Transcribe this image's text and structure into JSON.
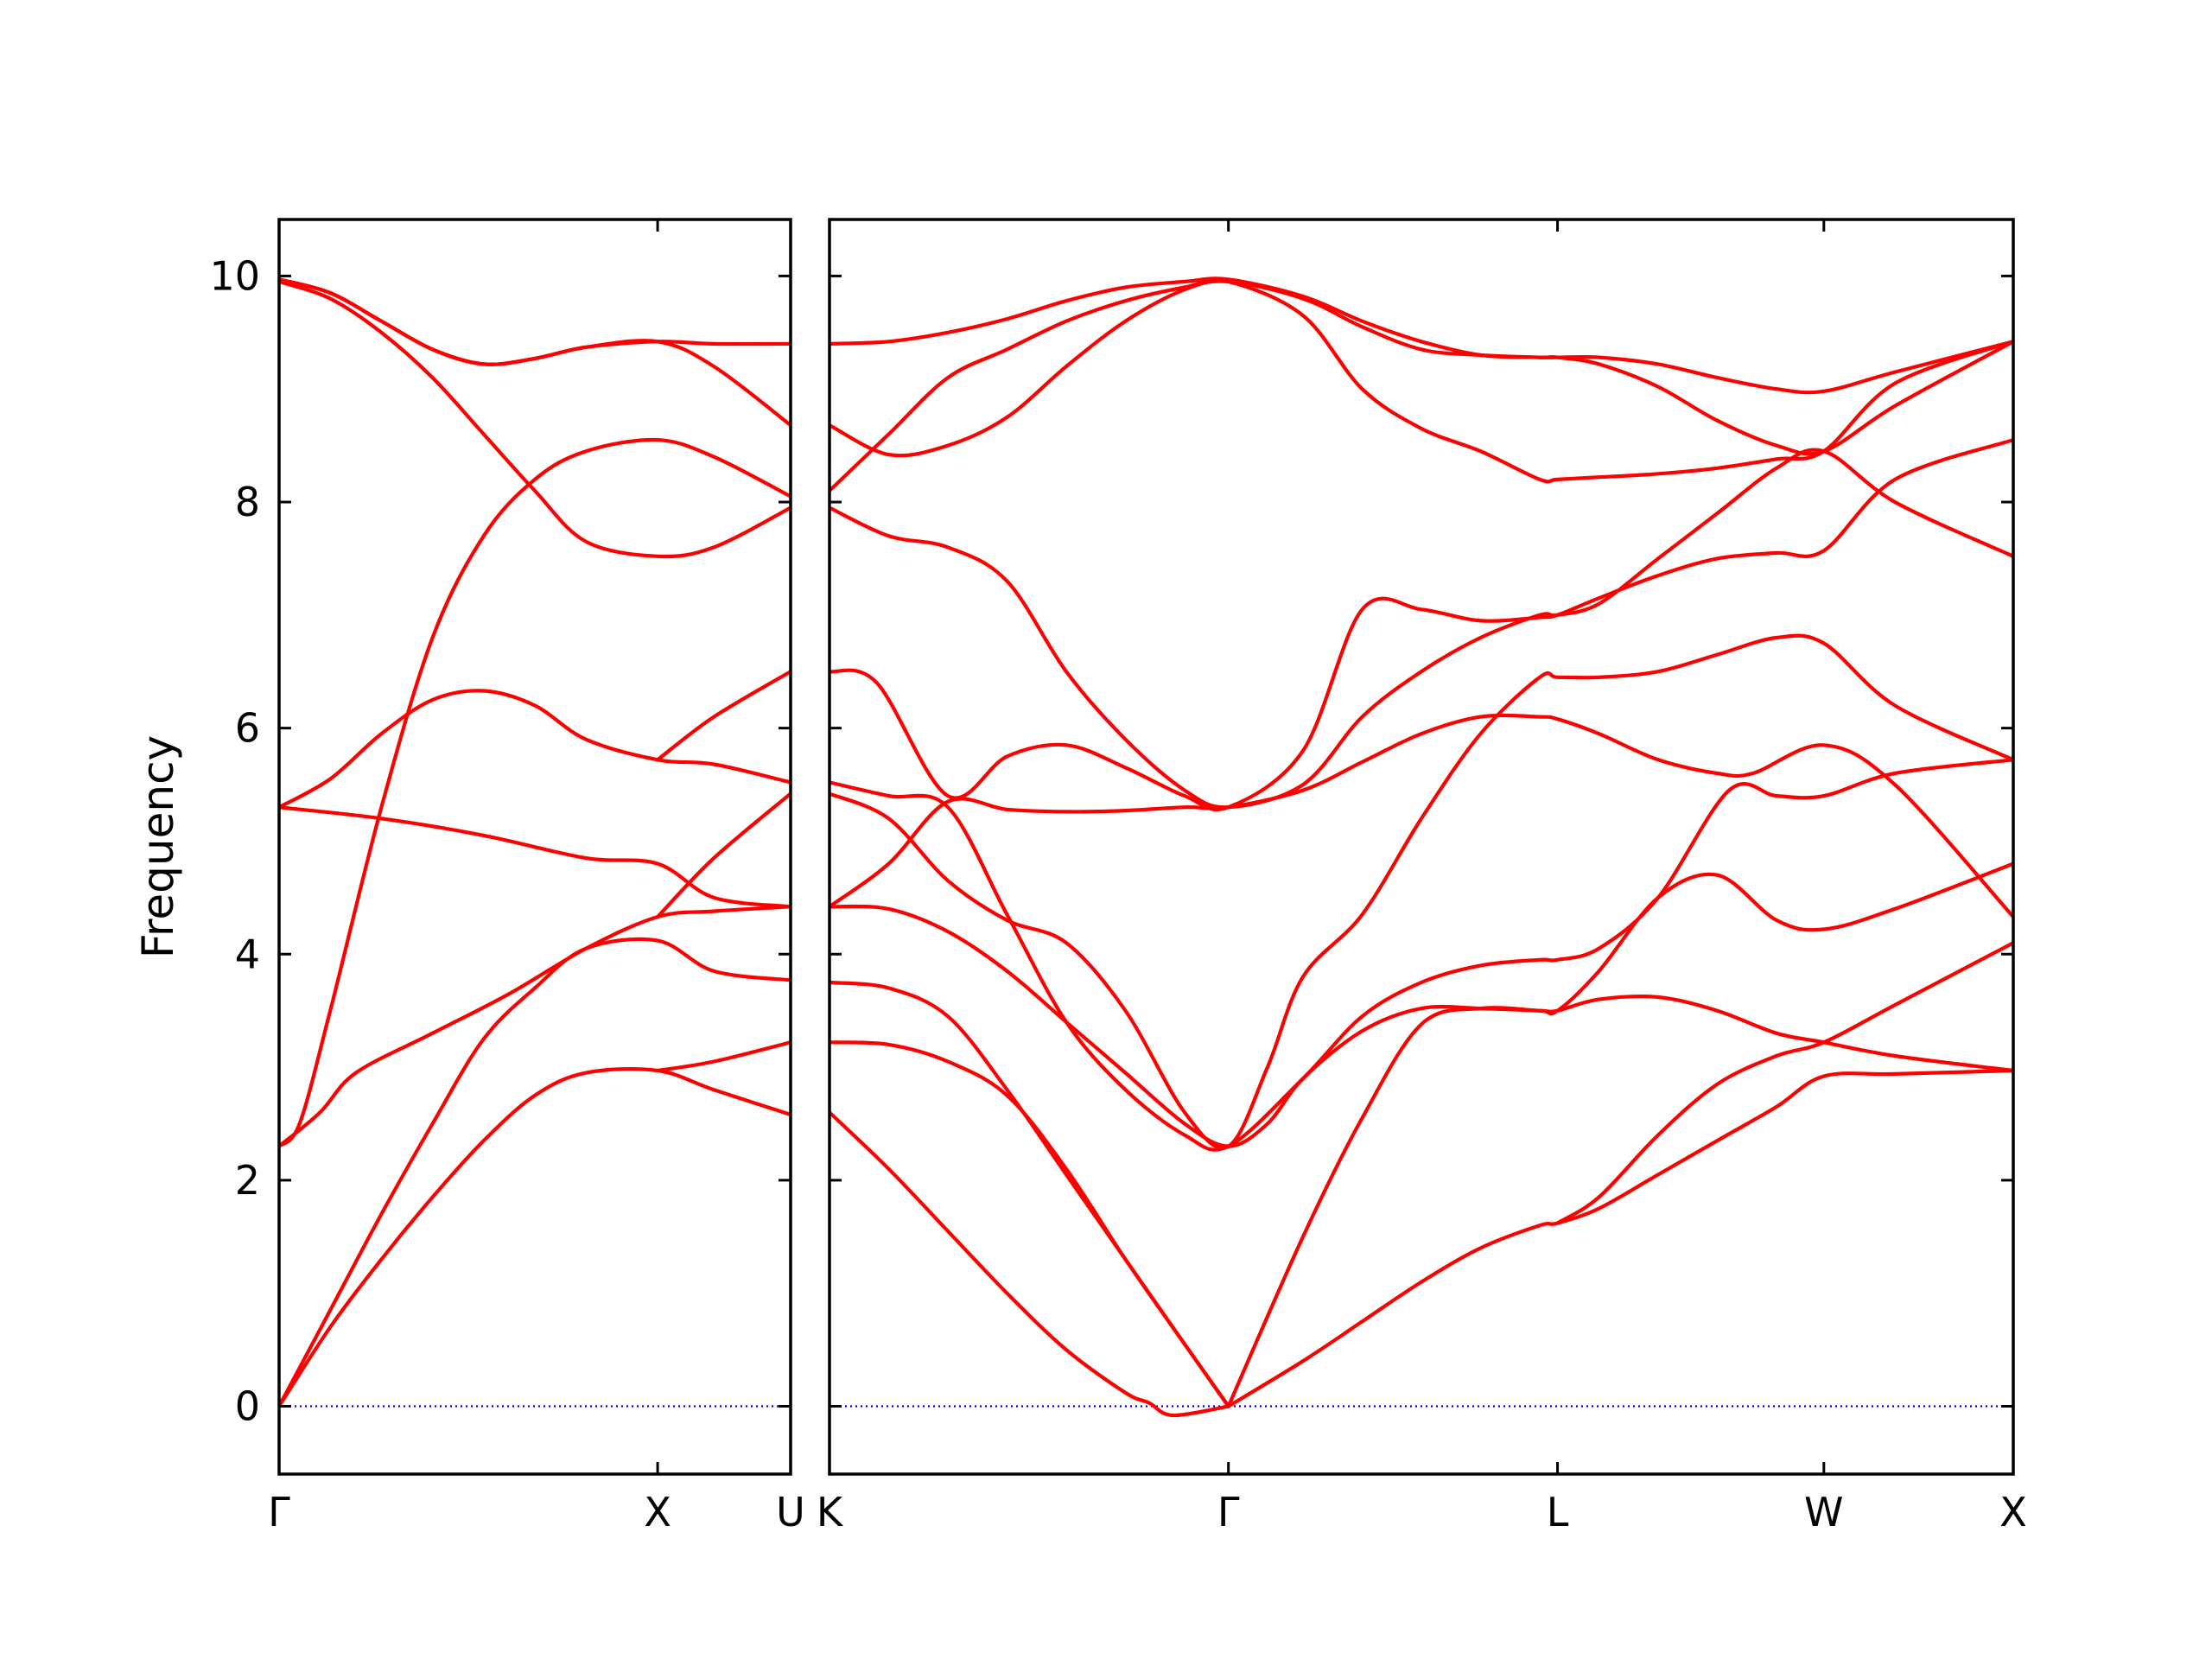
{
  "chart_data": {
    "type": "line",
    "ylabel": "Frequency",
    "ylim": [
      -0.6,
      10.5
    ],
    "yticks": [
      0,
      2,
      4,
      6,
      8,
      10
    ],
    "line_color": "#ff0000",
    "zero_line_color": "#0000cc",
    "panels": [
      {
        "name": "left",
        "xticks": [
          {
            "label": "Γ",
            "pos": 0
          },
          {
            "label": "X",
            "pos": 0.74
          },
          {
            "label": "U",
            "pos": 1.0
          }
        ],
        "series": [
          {
            "x": [
              0,
              0.1,
              0.2,
              0.3,
              0.4,
              0.5,
              0.6,
              0.74,
              0.85,
              1.0
            ],
            "y": [
              0,
              0.7,
              1.3,
              1.85,
              2.35,
              2.75,
              2.95,
              2.97,
              2.8,
              2.58
            ]
          },
          {
            "x": [
              0,
              0.1,
              0.2,
              0.3,
              0.4,
              0.5,
              0.6,
              0.74,
              0.85,
              1.0
            ],
            "y": [
              0,
              0.85,
              1.7,
              2.5,
              3.25,
              3.7,
              4.05,
              4.12,
              3.85,
              3.77
            ]
          },
          {
            "x": [
              0,
              0.08,
              0.15,
              0.3,
              0.45,
              0.6,
              0.74,
              0.85,
              1.0
            ],
            "y": [
              2.3,
              2.6,
              2.95,
              3.3,
              3.65,
              4.05,
              4.33,
              4.38,
              4.42
            ]
          },
          {
            "x": [
              0,
              0.2,
              0.4,
              0.6,
              0.74,
              0.85,
              1.0
            ],
            "y": [
              5.3,
              5.2,
              5.05,
              4.85,
              4.8,
              4.5,
              4.42
            ]
          },
          {
            "x": [
              0,
              0.1,
              0.2,
              0.3,
              0.4,
              0.5,
              0.6,
              0.74,
              0.85,
              1.0
            ],
            "y": [
              5.3,
              5.55,
              5.95,
              6.25,
              6.33,
              6.2,
              5.9,
              5.72,
              5.68,
              5.52
            ]
          },
          {
            "x": [
              0,
              0.04,
              0.1,
              0.2,
              0.3,
              0.4,
              0.5,
              0.6,
              0.74,
              0.85,
              1.0
            ],
            "y": [
              2.3,
              2.5,
              3.5,
              5.3,
              6.8,
              7.7,
              8.2,
              8.45,
              8.55,
              8.4,
              8.05
            ]
          },
          {
            "x": [
              0,
              0.1,
              0.2,
              0.3,
              0.4,
              0.5,
              0.6,
              0.74,
              0.85,
              1.0
            ],
            "y": [
              9.95,
              9.8,
              9.5,
              9.1,
              8.6,
              8.1,
              7.65,
              7.52,
              7.6,
              7.95
            ]
          },
          {
            "x": [
              0,
              0.1,
              0.2,
              0.3,
              0.4,
              0.5,
              0.6,
              0.74,
              0.85,
              1.0
            ],
            "y": [
              9.97,
              9.85,
              9.6,
              9.35,
              9.22,
              9.27,
              9.37,
              9.42,
              9.4,
              9.4
            ]
          },
          {
            "x": [
              0,
              0.1,
              0.2,
              0.3,
              0.4,
              0.5,
              0.6,
              0.74,
              0.85,
              1.0
            ],
            "y": [
              9.97,
              9.85,
              9.6,
              9.35,
              9.22,
              9.27,
              9.37,
              9.42,
              9.2,
              8.68
            ]
          },
          {
            "x": [
              0.74,
              0.85,
              1.0
            ],
            "y": [
              4.33,
              4.85,
              5.42
            ]
          },
          {
            "x": [
              0.74,
              0.85,
              1.0
            ],
            "y": [
              2.97,
              3.05,
              3.22
            ]
          },
          {
            "x": [
              0.74,
              0.85,
              1.0
            ],
            "y": [
              5.72,
              6.1,
              6.5
            ]
          }
        ]
      },
      {
        "name": "right",
        "xticks": [
          {
            "label": "K",
            "pos": 0
          },
          {
            "label": "Γ",
            "pos": 0.337
          },
          {
            "label": "L",
            "pos": 0.615
          },
          {
            "label": "W",
            "pos": 0.84
          },
          {
            "label": "X",
            "pos": 1.0
          }
        ],
        "series": [
          {
            "x": [
              0,
              0.05,
              0.1,
              0.15,
              0.2,
              0.25,
              0.27,
              0.29,
              0.337
            ],
            "y": [
              2.6,
              2.1,
              1.55,
              1.0,
              0.5,
              0.12,
              0.03,
              -0.08,
              0.0
            ]
          },
          {
            "x": [
              0,
              0.05,
              0.1,
              0.15,
              0.2,
              0.25,
              0.3,
              0.337
            ],
            "y": [
              3.22,
              3.2,
              3.05,
              2.75,
              2.1,
              1.3,
              0.55,
              0.0
            ]
          },
          {
            "x": [
              0,
              0.05,
              0.1,
              0.15,
              0.2,
              0.25,
              0.3,
              0.337
            ],
            "y": [
              3.75,
              3.7,
              3.45,
              2.8,
              2.05,
              1.3,
              0.55,
              0.0
            ]
          },
          {
            "x": [
              0.337,
              0.4,
              0.45,
              0.5,
              0.55,
              0.6,
              0.615,
              0.65,
              0.7,
              0.75,
              0.8,
              0.84,
              0.9,
              1.0
            ],
            "y": [
              0.0,
              0.4,
              0.75,
              1.1,
              1.4,
              1.6,
              1.62,
              1.75,
              2.05,
              2.35,
              2.65,
              2.92,
              2.94,
              2.97
            ]
          },
          {
            "x": [
              0.337,
              0.4,
              0.45,
              0.5,
              0.55,
              0.6,
              0.615,
              0.65,
              0.7,
              0.75,
              0.8,
              0.84,
              0.9,
              1.0
            ],
            "y": [
              0.0,
              1.5,
              2.55,
              3.38,
              3.52,
              3.5,
              3.5,
              3.6,
              3.62,
              3.5,
              3.3,
              3.22,
              3.1,
              2.97
            ]
          },
          {
            "x": [
              0.615,
              0.65,
              0.7,
              0.75,
              0.8,
              0.84,
              0.9,
              1.0
            ],
            "y": [
              1.62,
              1.85,
              2.4,
              2.85,
              3.1,
              3.22,
              3.55,
              4.1
            ]
          },
          {
            "x": [
              0,
              0.05,
              0.1,
              0.15,
              0.2,
              0.25,
              0.3,
              0.337,
              0.37,
              0.4,
              0.45,
              0.5,
              0.55,
              0.6,
              0.615,
              0.65,
              0.7,
              0.75,
              0.8,
              0.84,
              0.9,
              1.0
            ],
            "y": [
              4.42,
              4.4,
              4.2,
              3.85,
              3.4,
              2.95,
              2.5,
              2.3,
              2.5,
              2.9,
              3.32,
              3.52,
              3.52,
              3.5,
              3.5,
              3.85,
              4.5,
              4.7,
              4.3,
              4.22,
              4.4,
              4.8
            ]
          },
          {
            "x": [
              0,
              0.05,
              0.1,
              0.15,
              0.2,
              0.25,
              0.3,
              0.337,
              0.37,
              0.4,
              0.45,
              0.5,
              0.55,
              0.6,
              0.615,
              0.65,
              0.7,
              0.75,
              0.8,
              0.84,
              0.9,
              1.0
            ],
            "y": [
              5.42,
              5.2,
              4.65,
              4.3,
              4.1,
              3.5,
              2.6,
              2.3,
              3.0,
              3.8,
              4.35,
              5.2,
              5.95,
              6.45,
              6.45,
              6.45,
              6.5,
              6.65,
              6.8,
              6.75,
              6.2,
              5.72
            ]
          },
          {
            "x": [
              0,
              0.05,
              0.1,
              0.15,
              0.2,
              0.25,
              0.3,
              0.337,
              0.4,
              0.45,
              0.5,
              0.55,
              0.6,
              0.615,
              0.65,
              0.7,
              0.75,
              0.78,
              0.84,
              0.9,
              1.0
            ],
            "y": [
              4.42,
              4.8,
              5.35,
              5.28,
              5.26,
              5.27,
              5.3,
              5.3,
              5.45,
              5.7,
              5.95,
              6.1,
              6.1,
              6.08,
              5.95,
              5.72,
              5.6,
              5.6,
              5.85,
              5.5,
              4.33
            ]
          },
          {
            "x": [
              0,
              0.05,
              0.1,
              0.15,
              0.2,
              0.25,
              0.3,
              0.337,
              0.4,
              0.45,
              0.5,
              0.55,
              0.6,
              0.615,
              0.65,
              0.7,
              0.76,
              0.8,
              0.84,
              0.9,
              1.0
            ],
            "y": [
              5.52,
              5.4,
              5.3,
              4.35,
              3.4,
              2.8,
              2.4,
              2.3,
              2.9,
              3.45,
              3.75,
              3.9,
              3.95,
              3.95,
              4.05,
              4.5,
              5.45,
              5.4,
              5.4,
              5.6,
              5.72
            ]
          },
          {
            "x": [
              0,
              0.04,
              0.1,
              0.15,
              0.2,
              0.25,
              0.3,
              0.337,
              0.4,
              0.45,
              0.5,
              0.55,
              0.6,
              0.615,
              0.65,
              0.7,
              0.75,
              0.8,
              0.84,
              0.9,
              1.0
            ],
            "y": [
              6.5,
              6.4,
              5.4,
              5.75,
              5.85,
              5.65,
              5.4,
              5.3,
              5.8,
              7.05,
              7.05,
              6.95,
              6.98,
              7.0,
              7.15,
              7.35,
              7.5,
              7.55,
              7.57,
              8.2,
              8.55
            ]
          },
          {
            "x": [
              0,
              0.05,
              0.1,
              0.15,
              0.2,
              0.25,
              0.3,
              0.337,
              0.4,
              0.45,
              0.5,
              0.55,
              0.6,
              0.615,
              0.65,
              0.7,
              0.75,
              0.8,
              0.84,
              0.9,
              1.0
            ],
            "y": [
              7.95,
              7.7,
              7.6,
              7.3,
              6.5,
              5.9,
              5.45,
              5.3,
              5.5,
              6.1,
              6.5,
              6.8,
              7.0,
              7.0,
              7.1,
              7.5,
              7.9,
              8.3,
              8.45,
              8.0,
              7.52
            ]
          },
          {
            "x": [
              0,
              0.05,
              0.1,
              0.15,
              0.2,
              0.25,
              0.3,
              0.337,
              0.4,
              0.45,
              0.5,
              0.55,
              0.6,
              0.615,
              0.65,
              0.7,
              0.75,
              0.8,
              0.84,
              0.9,
              1.0
            ],
            "y": [
              8.1,
              8.6,
              9.1,
              9.35,
              9.6,
              9.78,
              9.9,
              9.95,
              9.65,
              9.0,
              8.65,
              8.45,
              8.2,
              8.2,
              8.22,
              8.25,
              8.3,
              8.38,
              8.45,
              9.05,
              9.42
            ]
          },
          {
            "x": [
              0,
              0.05,
              0.1,
              0.15,
              0.2,
              0.25,
              0.3,
              0.337,
              0.4,
              0.45,
              0.5,
              0.55,
              0.6,
              0.615,
              0.65,
              0.7,
              0.75,
              0.8,
              0.84,
              0.9,
              1.0
            ],
            "y": [
              8.68,
              8.42,
              8.5,
              8.75,
              9.2,
              9.6,
              9.88,
              9.95,
              9.8,
              9.55,
              9.35,
              9.3,
              9.28,
              9.28,
              9.22,
              9.02,
              8.72,
              8.5,
              8.45,
              8.85,
              9.42
            ]
          },
          {
            "x": [
              0,
              0.05,
              0.1,
              0.15,
              0.2,
              0.25,
              0.3,
              0.337,
              0.4,
              0.45,
              0.5,
              0.55,
              0.6,
              0.615,
              0.65,
              0.7,
              0.75,
              0.8,
              0.84,
              0.9,
              1.0
            ],
            "y": [
              9.4,
              9.42,
              9.5,
              9.62,
              9.78,
              9.9,
              9.95,
              9.97,
              9.82,
              9.6,
              9.42,
              9.3,
              9.28,
              9.28,
              9.28,
              9.22,
              9.1,
              9.0,
              8.98,
              9.15,
              9.42
            ]
          }
        ]
      }
    ]
  }
}
